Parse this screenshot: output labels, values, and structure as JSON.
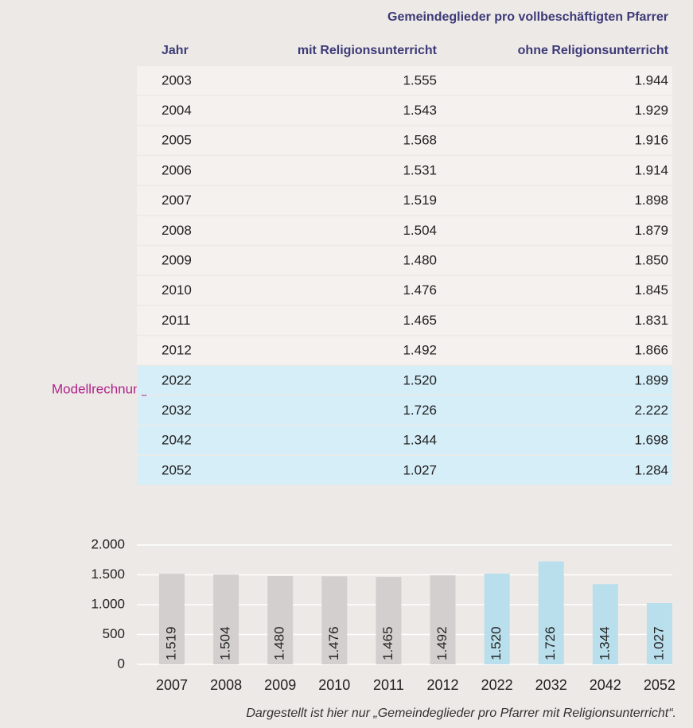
{
  "table": {
    "title": "Gemeindeglieder pro vollbeschäftigten Pfarrer",
    "columns": [
      "Jahr",
      "mit Religionsunterricht",
      "ohne Religionsunterricht"
    ],
    "rows": [
      [
        "2003",
        "1.555",
        "1.944"
      ],
      [
        "2004",
        "1.543",
        "1.929"
      ],
      [
        "2005",
        "1.568",
        "1.916"
      ],
      [
        "2006",
        "1.531",
        "1.914"
      ],
      [
        "2007",
        "1.519",
        "1.898"
      ],
      [
        "2008",
        "1.504",
        "1.879"
      ],
      [
        "2009",
        "1.480",
        "1.850"
      ],
      [
        "2010",
        "1.476",
        "1.845"
      ],
      [
        "2011",
        "1.465",
        "1.831"
      ],
      [
        "2012",
        "1.492",
        "1.866"
      ],
      [
        "2022",
        "1.520",
        "1.899"
      ],
      [
        "2032",
        "1.726",
        "2.222"
      ],
      [
        "2042",
        "1.344",
        "1.698"
      ],
      [
        "2052",
        "1.027",
        "1.284"
      ]
    ],
    "model_label": "Modellrechnung"
  },
  "chart_data": {
    "type": "bar",
    "categories": [
      "2007",
      "2008",
      "2009",
      "2010",
      "2011",
      "2012",
      "2022",
      "2032",
      "2042",
      "2052"
    ],
    "values": [
      1519,
      1504,
      1480,
      1476,
      1465,
      1492,
      1520,
      1726,
      1344,
      1027
    ],
    "value_labels": [
      "1.519",
      "1.504",
      "1.480",
      "1.476",
      "1.465",
      "1.492",
      "1.520",
      "1.726",
      "1.344",
      "1.027"
    ],
    "colors": [
      "#d4cfcf",
      "#d4cfcf",
      "#d4cfcf",
      "#d4cfcf",
      "#d4cfcf",
      "#d4cfcf",
      "#b9dfec",
      "#b9dfec",
      "#b9dfec",
      "#b9dfec"
    ],
    "ylim": [
      0,
      2000
    ],
    "yticks": [
      0,
      500,
      {
        "value": 1000,
        "label": "1.000"
      },
      {
        "value": 1500,
        "label": "1.500"
      },
      {
        "value": 2000,
        "label": "2.000"
      }
    ],
    "grid": true,
    "note": "Dargestellt ist hier nur „Gemeindeglieder pro Pfarrer mit Religionsunterricht“."
  }
}
